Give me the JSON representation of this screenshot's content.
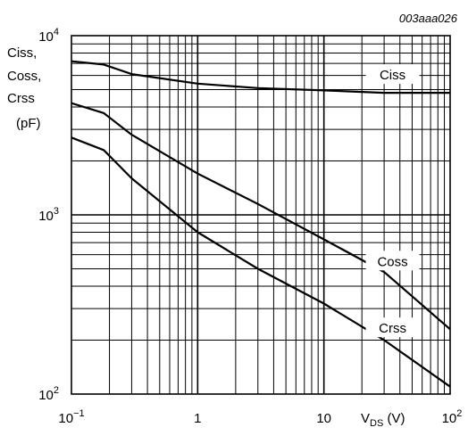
{
  "chart_data": {
    "type": "line",
    "figure_id": "003aaa026",
    "x_scale": "log",
    "y_scale": "log",
    "xlim": [
      0.1,
      100
    ],
    "ylim": [
      100,
      10000
    ],
    "grid": true,
    "ylabel_lines": [
      "Ciss,",
      "Coss,",
      "Crss",
      "(pF)"
    ],
    "xlabel": {
      "main": "V",
      "sub": "DS",
      "unit": " (V)"
    },
    "x_ticks": [
      {
        "value": 0.1,
        "base": "10",
        "exp": "−1"
      },
      {
        "value": 1,
        "base": "1",
        "exp": ""
      },
      {
        "value": 10,
        "base": "10",
        "exp": ""
      },
      {
        "value": 100,
        "base": "10",
        "exp": "2"
      }
    ],
    "y_ticks": [
      {
        "value": 100,
        "base": "10",
        "exp": "2"
      },
      {
        "value": 1000,
        "base": "10",
        "exp": "3"
      },
      {
        "value": 10000,
        "base": "10",
        "exp": "4"
      }
    ],
    "series": [
      {
        "name": "Ciss",
        "label_at": 35,
        "points": [
          [
            0.1,
            7200
          ],
          [
            0.18,
            6900
          ],
          [
            0.3,
            6100
          ],
          [
            1,
            5400
          ],
          [
            3,
            5100
          ],
          [
            10,
            4950
          ],
          [
            30,
            4800
          ],
          [
            100,
            4800
          ]
        ]
      },
      {
        "name": "Coss",
        "label_at": 35,
        "points": [
          [
            0.1,
            4200
          ],
          [
            0.18,
            3700
          ],
          [
            0.3,
            2800
          ],
          [
            1,
            1700
          ],
          [
            3,
            1150
          ],
          [
            10,
            730
          ],
          [
            30,
            480
          ],
          [
            100,
            230
          ]
        ]
      },
      {
        "name": "Crss",
        "label_at": 35,
        "points": [
          [
            0.1,
            2700
          ],
          [
            0.18,
            2300
          ],
          [
            0.3,
            1600
          ],
          [
            1,
            800
          ],
          [
            3,
            500
          ],
          [
            10,
            320
          ],
          [
            30,
            200
          ],
          [
            100,
            110
          ]
        ]
      }
    ]
  }
}
